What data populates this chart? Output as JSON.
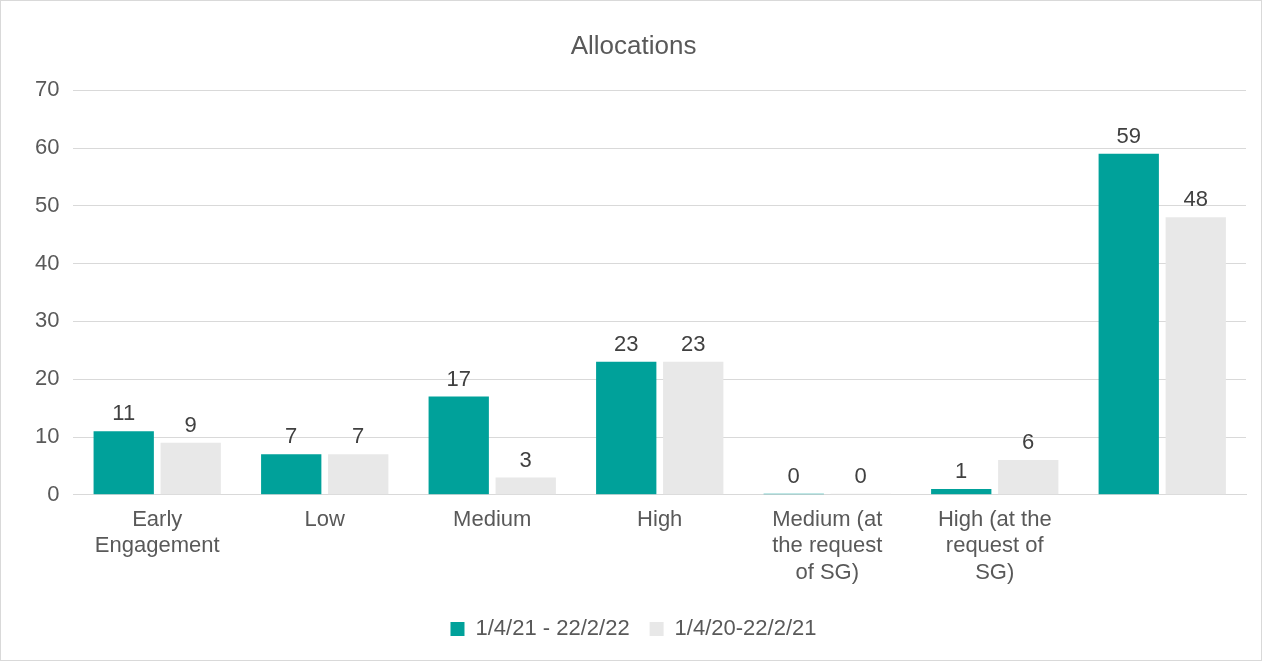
{
  "chart_data": {
    "type": "bar",
    "title": "Allocations",
    "categories": [
      "Early Engagement",
      "Low",
      "Medium",
      "High",
      "Medium (at the request of SG)",
      "High (at the request of SG)",
      null
    ],
    "series": [
      {
        "name": "1/4/21 - 22/2/22",
        "color": "#00a19a",
        "values": [
          11,
          7,
          17,
          23,
          0,
          1,
          59
        ]
      },
      {
        "name": "1/4/20-22/2/21",
        "color": "#e8e8e8",
        "values": [
          9,
          7,
          3,
          23,
          0,
          6,
          48
        ]
      }
    ],
    "ylim": [
      0,
      70
    ],
    "yticks": [
      0,
      10,
      20,
      30,
      40,
      50,
      60,
      70
    ],
    "grid": "y",
    "legend": "bottom",
    "data_labels": true
  }
}
